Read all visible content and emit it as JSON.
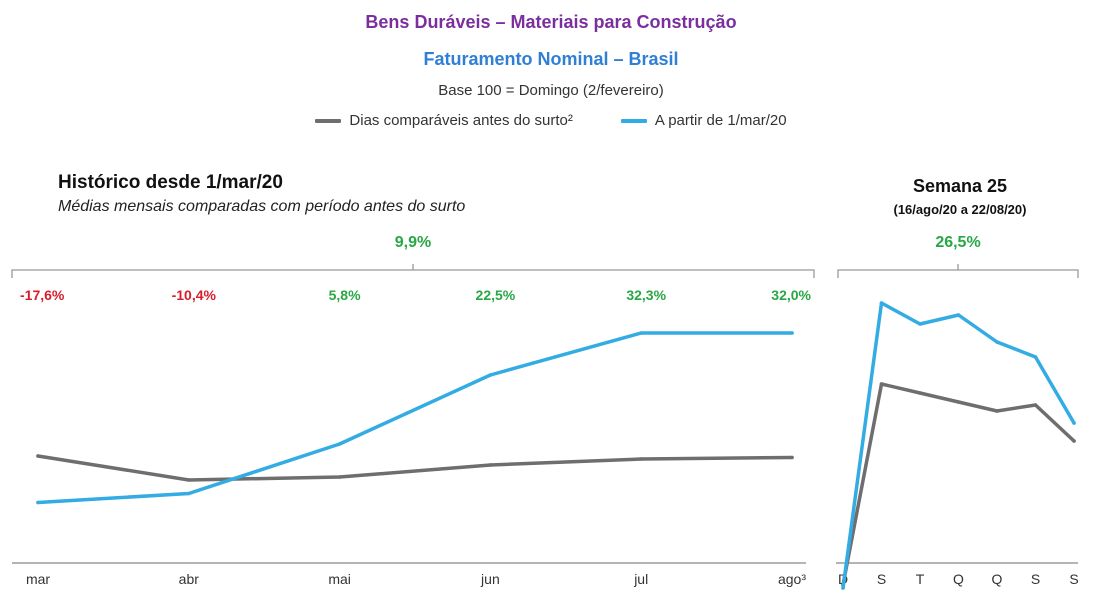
{
  "header": {
    "title": "Bens Duráveis – Materiais para Construção",
    "subtitle": "Faturamento Nominal – Brasil",
    "base_note": "Base 100 = Domingo (2/fevereiro)"
  },
  "legend": [
    {
      "label": "Dias comparáveis antes do surto²",
      "color": "#6e6e6e"
    },
    {
      "label": "A partir de 1/mar/20",
      "color": "#33ace3"
    }
  ],
  "colors": {
    "negative": "#d81c2c",
    "positive": "#28a745",
    "bracket": "#999999",
    "axis": "#888888"
  },
  "chart_data": [
    {
      "type": "line",
      "title": "Histórico desde 1/mar/20",
      "subtitle": "Médias mensais comparadas com período antes do surto",
      "categories": [
        "mar",
        "abr",
        "mai",
        "jun",
        "jul",
        "ago³"
      ],
      "summary_value": "9,9%",
      "summary_color": "#28a745",
      "variation_labels": [
        {
          "text": "-17,6%",
          "color": "#d81c2c"
        },
        {
          "text": "-10,4%",
          "color": "#d81c2c"
        },
        {
          "text": "5,8%",
          "color": "#28a745"
        },
        {
          "text": "22,5%",
          "color": "#28a745"
        },
        {
          "text": "32,3%",
          "color": "#28a745"
        },
        {
          "text": "32,0%",
          "color": "#28a745"
        }
      ],
      "ylim": [
        40,
        140
      ],
      "series": [
        {
          "name": "Dias comparáveis antes do surto²",
          "color": "#6e6e6e",
          "values": [
            88,
            80,
            81,
            85,
            87,
            87.5
          ]
        },
        {
          "name": "A partir de 1/mar/20",
          "color": "#33ace3",
          "values": [
            72.5,
            75.5,
            92,
            115,
            129,
            129
          ]
        }
      ],
      "grid": false,
      "legend_position": "top"
    },
    {
      "type": "line",
      "title": "Semana 25",
      "subtitle": "(16/ago/20 a 22/08/20)",
      "categories": [
        "D",
        "S",
        "T",
        "Q",
        "Q",
        "S",
        "S"
      ],
      "summary_value": "26,5%",
      "summary_color": "#28a745",
      "ylim": [
        40,
        140
      ],
      "series": [
        {
          "name": "Dias comparáveis antes do surto²",
          "color": "#6e6e6e",
          "values": [
            45,
            112,
            109,
            106,
            103,
            105,
            93
          ]
        },
        {
          "name": "A partir de 1/mar/20",
          "color": "#33ace3",
          "values": [
            44,
            139,
            132,
            135,
            126,
            121,
            99
          ]
        }
      ],
      "grid": false,
      "legend_position": "top"
    }
  ]
}
